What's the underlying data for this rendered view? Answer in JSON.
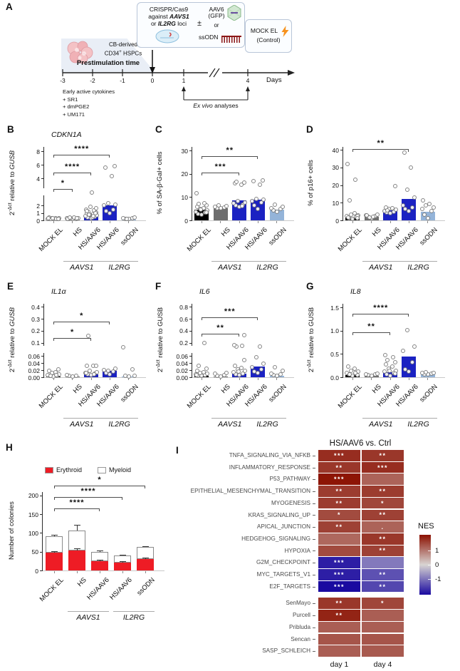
{
  "panel_a": {
    "letter": "A",
    "crispr": {
      "l1": "CRISPR/Cas9",
      "l2a": "against ",
      "l2b": "AAVS1",
      "l3a": "or ",
      "l3b": "IL2RG",
      "l3c": " loci",
      "pm": "±",
      "aav": "AAV6",
      "gfp": "(GFP)",
      "or": "or",
      "ssodn": "ssODN"
    },
    "mock": {
      "l1": "MOCK EL",
      "l2": "(Control)"
    },
    "cell": {
      "l1": "CB-derived",
      "l2a": "CD34",
      "l2sup": "+",
      "l2b": " HSPCs"
    },
    "prestim": "Prestimulation time",
    "ticks": [
      "-3",
      "-2",
      "-1",
      "0",
      "1",
      "4"
    ],
    "days": "Days",
    "cytokines": [
      "Early active cytokines",
      "+ SR1",
      "+ dmPGE2",
      "+ UM171"
    ],
    "exvivo_i": "Ex vivo",
    "exvivo_r": " analyses"
  },
  "categories": [
    "MOCK EL",
    "HS",
    "HS/AAV6",
    "HS/AAV6",
    "ssODN"
  ],
  "groups": [
    {
      "label": "AAVS1",
      "from": 1,
      "to": 2
    },
    {
      "label": "IL2RG",
      "from": 3,
      "to": 4
    }
  ],
  "colors": {
    "mock": "#000000",
    "hs": "#6e6e6e",
    "aav6": "#1b22c2",
    "ssodn": "#94b4d9",
    "erythroid": "#ee1c25",
    "heat_red": "#8b1000",
    "heat_mid": "#d8d4d2",
    "heat_blue": "#1a0aa0",
    "bracket": "#4d4d4d",
    "axis": "#2b2b2b",
    "baseline": "#c9c9c9"
  },
  "chart_data": [
    {
      "id": "B",
      "letter": "B",
      "type": "bar",
      "title": "CDKN1A",
      "ylabel": {
        "base": "2",
        "sup": "-Δct",
        "mid": " relative to ",
        "gene": "GUSB",
        "gene_italic": true
      },
      "yticks": [
        {
          "v": 0,
          "t": "0",
          "f": 0
        },
        {
          "v": 1,
          "t": "1",
          "f": 0.1
        },
        {
          "v": 2,
          "t": "2",
          "f": 0.2
        },
        {
          "v": 4,
          "t": "4",
          "f": 0.56
        },
        {
          "v": 6,
          "t": "6",
          "f": 0.74
        },
        {
          "v": 8,
          "t": "8",
          "f": 0.92
        }
      ],
      "break_f": 0.38,
      "values": [
        0.15,
        0.12,
        0.6,
        2.0,
        0.1
      ],
      "bar_colors": [
        "mock",
        "hs",
        "aav6",
        "aav6",
        "ssodn"
      ],
      "points": [
        [
          0.05,
          0.08,
          0.1,
          0.12,
          0.15,
          0.18,
          0.22,
          0.28,
          0.06,
          0.1,
          0.14,
          0.2,
          0.09,
          0.16
        ],
        [
          0.05,
          0.08,
          0.12,
          0.15,
          0.18,
          0.22,
          0.25,
          0.1,
          0.2,
          0.3
        ],
        [
          0.15,
          0.25,
          0.35,
          0.45,
          0.55,
          0.65,
          0.75,
          0.85,
          0.95,
          1.05,
          1.2,
          1.35,
          1.5,
          1.7,
          0.3,
          0.5,
          0.7,
          0.9,
          1.1,
          2.9
        ],
        [
          0.9,
          1.1,
          1.3,
          1.9,
          2.0,
          2.1,
          4.2,
          5.5,
          5.7
        ],
        [
          0.05,
          0.1,
          0.15,
          0.2,
          0.25,
          0.12
        ]
      ],
      "sig": [
        {
          "a": 0,
          "b": 1,
          "s": "*",
          "f": 0.42
        },
        {
          "a": 0,
          "b": 2,
          "s": "****",
          "f": 0.64
        },
        {
          "a": 0,
          "b": 3,
          "s": "****",
          "f": 0.88
        }
      ]
    },
    {
      "id": "C",
      "letter": "C",
      "type": "bar",
      "title": "",
      "ylabel": {
        "text": "% of SA-β-Gal+ cells"
      },
      "yticks": [
        {
          "v": 0,
          "t": "0",
          "f": 0
        },
        {
          "v": 10,
          "t": "10",
          "f": 0.31
        },
        {
          "v": 20,
          "t": "20",
          "f": 0.62
        },
        {
          "v": 30,
          "t": "30",
          "f": 0.93
        }
      ],
      "values": [
        4.5,
        5.3,
        8.5,
        9.0,
        4.5
      ],
      "bar_colors": [
        "mock",
        "hs",
        "aav6",
        "aav6",
        "ssodn"
      ],
      "points": [
        [
          2,
          2.5,
          3,
          3.5,
          4,
          4.5,
          5,
          5.5,
          6,
          6.8,
          7.2,
          11.3,
          3.2,
          4.2
        ],
        [
          4.8,
          5.0,
          5.2,
          5.5,
          5.8,
          6.0
        ],
        [
          5.5,
          6,
          6.5,
          7,
          7.5,
          8,
          15.2,
          15.6,
          16,
          16.4,
          5.8
        ],
        [
          4.5,
          6,
          7.5,
          8,
          8.5,
          9,
          15,
          16.5,
          17
        ],
        [
          3.5,
          4,
          4.5,
          5,
          5.5,
          6.5
        ]
      ],
      "sig": [
        {
          "a": 0,
          "b": 2,
          "s": "***",
          "f": 0.64
        },
        {
          "a": 0,
          "b": 3,
          "s": "**",
          "f": 0.86
        }
      ]
    },
    {
      "id": "D",
      "letter": "D",
      "type": "bar",
      "title": "",
      "ylabel": {
        "text": "% of p16+ cells"
      },
      "yticks": [
        {
          "v": 0,
          "t": "0",
          "f": 0
        },
        {
          "v": 10,
          "t": "10",
          "f": 0.235
        },
        {
          "v": 20,
          "t": "20",
          "f": 0.47
        },
        {
          "v": 30,
          "t": "30",
          "f": 0.705
        },
        {
          "v": 40,
          "t": "40",
          "f": 0.94
        }
      ],
      "values": [
        1.8,
        2.0,
        5.5,
        12,
        5
      ],
      "bar_colors": [
        "mock",
        "hs",
        "aav6",
        "aav6",
        "ssodn"
      ],
      "points": [
        [
          0.5,
          1,
          1.5,
          2,
          2.5,
          3,
          3.5,
          1.2,
          2.2,
          11,
          22.5,
          31.5,
          0.8
        ],
        [
          1,
          1.5,
          2,
          2.5,
          3,
          1.2,
          1.8,
          2.6
        ],
        [
          3.5,
          4,
          4.5,
          5,
          5.5,
          6,
          6.5,
          7,
          19,
          5.2
        ],
        [
          5,
          6,
          7,
          8,
          12.5,
          17,
          29.5,
          38
        ],
        [
          1,
          3,
          5,
          6,
          7,
          8,
          9,
          11
        ]
      ],
      "sig": [
        {
          "a": 0,
          "b": 3,
          "s": "**",
          "f": 0.95
        }
      ]
    },
    {
      "id": "E",
      "letter": "E",
      "type": "bar",
      "title": "IL1α",
      "ylabel": {
        "base": "2",
        "sup": "-Δct",
        "mid": " relative to ",
        "gene": "GUSB",
        "gene_italic": true
      },
      "yticks": [
        {
          "v": 0,
          "t": "0.00",
          "f": 0
        },
        {
          "v": 0.02,
          "t": "0.02",
          "f": 0.095
        },
        {
          "v": 0.04,
          "t": "0.04",
          "f": 0.19
        },
        {
          "v": 0.06,
          "t": "0.06",
          "f": 0.285
        },
        {
          "v": 0.1,
          "t": "0.1",
          "f": 0.46
        },
        {
          "v": 0.2,
          "t": "0.2",
          "f": 0.62
        },
        {
          "v": 0.3,
          "t": "0.3",
          "f": 0.78
        },
        {
          "v": 0.4,
          "t": "0.4",
          "f": 0.94
        }
      ],
      "break_f": 0.37,
      "values": [
        0.003,
        0.001,
        0.008,
        0.018,
        0.002
      ],
      "bar_colors": [
        "mock",
        "hs",
        "aav6",
        "aav6",
        "ssodn"
      ],
      "points": [
        [
          0.001,
          0.002,
          0.003,
          0.005,
          0.007,
          0.01,
          0.013,
          0.016,
          0.02,
          0.002,
          0.004
        ],
        [
          0.001,
          0.002,
          0.003,
          0.004
        ],
        [
          0.004,
          0.006,
          0.008,
          0.01,
          0.013,
          0.016,
          0.03,
          0.03,
          0.03,
          0.15,
          0.007,
          0.011
        ],
        [
          0.006,
          0.01,
          0.014,
          0.018,
          0.022,
          0.016
        ],
        [
          0.001,
          0.002,
          0.02,
          0.085,
          0.003
        ]
      ],
      "sig": [
        {
          "a": 0,
          "b": 2,
          "s": "*",
          "f": 0.52
        },
        {
          "a": 0,
          "b": 3,
          "s": "*",
          "f": 0.74
        }
      ]
    },
    {
      "id": "F",
      "letter": "F",
      "type": "bar",
      "title": "IL6",
      "ylabel": {
        "base": "2",
        "sup": "-Δct",
        "mid": " relative to ",
        "gene": "GUSB",
        "gene_italic": false
      },
      "yticks": [
        {
          "v": 0,
          "t": "0.00",
          "f": 0
        },
        {
          "v": 0.02,
          "t": "0.02",
          "f": 0.095
        },
        {
          "v": 0.04,
          "t": "0.04",
          "f": 0.19
        },
        {
          "v": 0.06,
          "t": "0.06",
          "f": 0.285
        },
        {
          "v": 0.2,
          "t": "0.2",
          "f": 0.46
        },
        {
          "v": 0.4,
          "t": "0.4",
          "f": 0.62
        },
        {
          "v": 0.6,
          "t": "0.6",
          "f": 0.78
        },
        {
          "v": 0.8,
          "t": "0.8",
          "f": 0.94
        }
      ],
      "break_f": 0.37,
      "values": [
        0.004,
        0.002,
        0.01,
        0.03,
        0.005
      ],
      "bar_colors": [
        "mock",
        "hs",
        "aav6",
        "aav6",
        "ssodn"
      ],
      "points": [
        [
          0.002,
          0.003,
          0.004,
          0.006,
          0.008,
          0.01,
          0.013,
          0.017,
          0.022,
          0.03,
          0.19,
          0.005
        ],
        [
          0.001,
          0.002,
          0.004,
          0.008,
          0.011
        ],
        [
          0.004,
          0.006,
          0.009,
          0.012,
          0.016,
          0.02,
          0.025,
          0.03,
          0.046,
          0.15,
          0.16,
          0.17,
          0.31,
          0.014
        ],
        [
          0.01,
          0.014,
          0.02,
          0.026,
          0.036,
          0.055,
          0.15
        ],
        [
          0.002,
          0.004,
          0.006,
          0.009,
          0.016,
          0.026
        ]
      ],
      "sig": [
        {
          "a": 0,
          "b": 2,
          "s": "**",
          "f": 0.58
        },
        {
          "a": 0,
          "b": 3,
          "s": "***",
          "f": 0.8
        }
      ]
    },
    {
      "id": "G",
      "letter": "G",
      "type": "bar",
      "title": "IL8",
      "ylabel": {
        "base": "2",
        "sup": "-Δct",
        "mid": " relative to ",
        "gene": "GUSB",
        "gene_italic": false
      },
      "yticks": [
        {
          "v": 0,
          "t": "0.0",
          "f": 0
        },
        {
          "v": 0.5,
          "t": "0.5",
          "f": 0.31
        },
        {
          "v": 1.0,
          "t": "1.0",
          "f": 0.62
        },
        {
          "v": 1.5,
          "t": "1.5",
          "f": 0.93
        }
      ],
      "values": [
        0.05,
        0.03,
        0.1,
        0.44,
        0.07
      ],
      "bar_colors": [
        "mock",
        "hs",
        "aav6",
        "aav6",
        "ssodn"
      ],
      "points": [
        [
          0.02,
          0.04,
          0.06,
          0.08,
          0.1,
          0.13,
          0.17,
          0.22,
          0.03,
          0.05,
          0.07
        ],
        [
          0.02,
          0.03,
          0.04,
          0.05,
          0.06
        ],
        [
          0.02,
          0.04,
          0.07,
          0.1,
          0.13,
          0.17,
          0.21,
          0.26,
          0.31,
          0.36,
          0.41,
          0.46,
          0.06,
          0.12
        ],
        [
          0.1,
          0.16,
          0.3,
          0.55,
          0.65,
          1.0
        ],
        [
          0.04,
          0.05,
          0.06,
          0.07,
          0.08,
          0.09
        ]
      ],
      "sig": [
        {
          "a": 0,
          "b": 2,
          "s": "**",
          "f": 0.6
        },
        {
          "a": 0,
          "b": 3,
          "s": "****",
          "f": 0.85
        }
      ]
    },
    {
      "id": "H",
      "letter": "H",
      "type": "stacked",
      "ylabel": {
        "text": "Number of colonies"
      },
      "yticks": [
        {
          "v": 0,
          "t": "0",
          "f": 0
        },
        {
          "v": 50,
          "t": "50",
          "f": 0.235
        },
        {
          "v": 100,
          "t": "100",
          "f": 0.47
        },
        {
          "v": 150,
          "t": "150",
          "f": 0.705
        },
        {
          "v": 200,
          "t": "200",
          "f": 0.94
        }
      ],
      "legend": [
        {
          "label": "Erythroid",
          "color": "erythroid"
        },
        {
          "label": "Myeloid",
          "color": "#ffffff"
        }
      ],
      "erythroid": [
        47,
        53,
        24,
        21,
        31
      ],
      "myeloid": [
        45,
        54,
        26,
        18,
        31
      ],
      "ery_err": [
        4,
        5,
        4,
        4,
        3
      ],
      "total_err": [
        3,
        14,
        3,
        3,
        2
      ],
      "sig": [
        {
          "a": 0,
          "b": 2,
          "s": "****",
          "f": 0.78
        },
        {
          "a": 0,
          "b": 3,
          "s": "****",
          "f": 0.92
        },
        {
          "a": 0,
          "b": 4,
          "s": "*",
          "f": 1.06
        }
      ]
    },
    {
      "id": "I",
      "letter": "I",
      "type": "heatmap",
      "title": "HS/AAV6 vs. Ctrl",
      "columns": [
        "day 1",
        "day 4"
      ],
      "nes_scale": {
        "label": "NES",
        "ticks": [
          "1",
          "0",
          "-1"
        ]
      },
      "separator_after": 11,
      "rows": [
        {
          "label": "TNFA_SIGNALING_VIA_NFKB",
          "cells": [
            {
              "nes": 1.7,
              "sig": "***"
            },
            {
              "nes": 1.6,
              "sig": "**"
            }
          ]
        },
        {
          "label": "INFLAMMATORY_RESPONSE",
          "cells": [
            {
              "nes": 1.6,
              "sig": "**"
            },
            {
              "nes": 1.7,
              "sig": "***"
            }
          ]
        },
        {
          "label": "P53_PATHWAY",
          "cells": [
            {
              "nes": 1.95,
              "sig": "***"
            },
            {
              "nes": 1.15,
              "sig": ""
            }
          ]
        },
        {
          "label": "EPITHELIAL_MESENCHYMAL_TRANSITION",
          "cells": [
            {
              "nes": 1.55,
              "sig": "**"
            },
            {
              "nes": 1.55,
              "sig": "**"
            }
          ]
        },
        {
          "label": "MYOGENESIS",
          "cells": [
            {
              "nes": 1.55,
              "sig": "**"
            },
            {
              "nes": 1.45,
              "sig": "*"
            }
          ]
        },
        {
          "label": "KRAS_SIGNALING_UP",
          "cells": [
            {
              "nes": 1.4,
              "sig": "*"
            },
            {
              "nes": 1.5,
              "sig": "**"
            }
          ]
        },
        {
          "label": "APICAL_JUNCTION",
          "cells": [
            {
              "nes": 1.5,
              "sig": "**"
            },
            {
              "nes": 1.15,
              "sig": "."
            }
          ]
        },
        {
          "label": "HEDGEHOG_SIGNALING",
          "cells": [
            {
              "nes": 1.1,
              "sig": ""
            },
            {
              "nes": 1.6,
              "sig": "**"
            }
          ]
        },
        {
          "label": "HYPOXIA",
          "cells": [
            {
              "nes": 1.4,
              "sig": ""
            },
            {
              "nes": 1.5,
              "sig": "**"
            }
          ]
        },
        {
          "label": "G2M_CHECKPOINT",
          "cells": [
            {
              "nes": -1.8,
              "sig": "***"
            },
            {
              "nes": -0.9,
              "sig": ""
            }
          ]
        },
        {
          "label": "MYC_TARGETS_V1",
          "cells": [
            {
              "nes": -1.8,
              "sig": "***"
            },
            {
              "nes": -1.3,
              "sig": "**"
            }
          ]
        },
        {
          "label": "E2F_TARGETS",
          "cells": [
            {
              "nes": -2.0,
              "sig": "***"
            },
            {
              "nes": -1.4,
              "sig": "**"
            }
          ]
        },
        {
          "label": "SenMayo",
          "cells": [
            {
              "nes": 1.6,
              "sig": "**"
            },
            {
              "nes": 1.45,
              "sig": "*"
            }
          ]
        },
        {
          "label": "Purcell",
          "cells": [
            {
              "nes": 1.8,
              "sig": "**"
            },
            {
              "nes": 1.2,
              "sig": ""
            }
          ]
        },
        {
          "label": "Pribluda",
          "cells": [
            {
              "nes": 1.2,
              "sig": ""
            },
            {
              "nes": 1.2,
              "sig": ""
            }
          ]
        },
        {
          "label": "Sencan",
          "cells": [
            {
              "nes": 1.3,
              "sig": ""
            },
            {
              "nes": 1.3,
              "sig": ""
            }
          ]
        },
        {
          "label": "SASP_SCHLEICH",
          "cells": [
            {
              "nes": 1.2,
              "sig": ""
            },
            {
              "nes": 1.25,
              "sig": ""
            }
          ]
        }
      ]
    }
  ]
}
